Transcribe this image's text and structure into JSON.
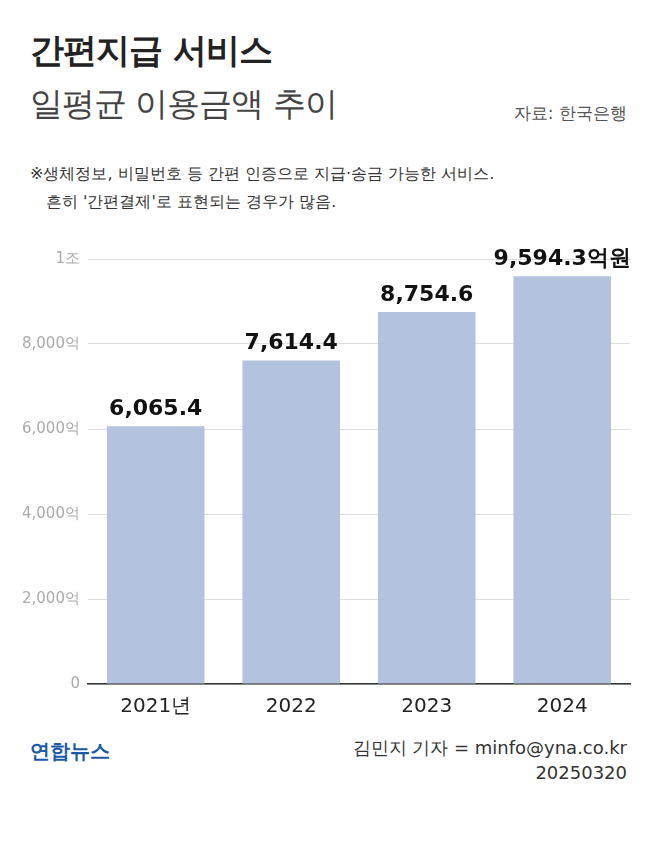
{
  "chart_data": {
    "type": "bar",
    "title": "간편지급 서비스",
    "subtitle": "일평균 이용금액 추이",
    "annotations": {
      "source": "자료: 한국은행",
      "note": [
        "※생체정보, 비밀번호 등 간편 인증으로 지급·송금 가능한 서비스.",
        "흔히 '간편결제'로 표현되는 경우가 많음."
      ],
      "logo": "연합뉴스",
      "byline": "김민지 기자 = minfo@yna.co.kr",
      "date": "20250320"
    },
    "categories": [
      "2021년",
      "2022",
      "2023",
      "2024"
    ],
    "values": [
      6065.4,
      7614.4,
      8754.6,
      9594.3
    ],
    "value_labels": [
      "6,065.4",
      "7,614.4",
      "8,754.6",
      "9,594.3억원"
    ],
    "data_labels": true,
    "color": "#b3c3dd",
    "ylim": [
      0,
      10000
    ],
    "yticks": [
      0,
      {
        "value": 2000,
        "label": "2,000억"
      },
      {
        "value": 4000,
        "label": "4,000억"
      },
      {
        "value": 6000,
        "label": "6,000억"
      },
      {
        "value": 8000,
        "label": "8,000억"
      },
      {
        "value": 10000,
        "label": "1조"
      }
    ],
    "grid": true
  }
}
